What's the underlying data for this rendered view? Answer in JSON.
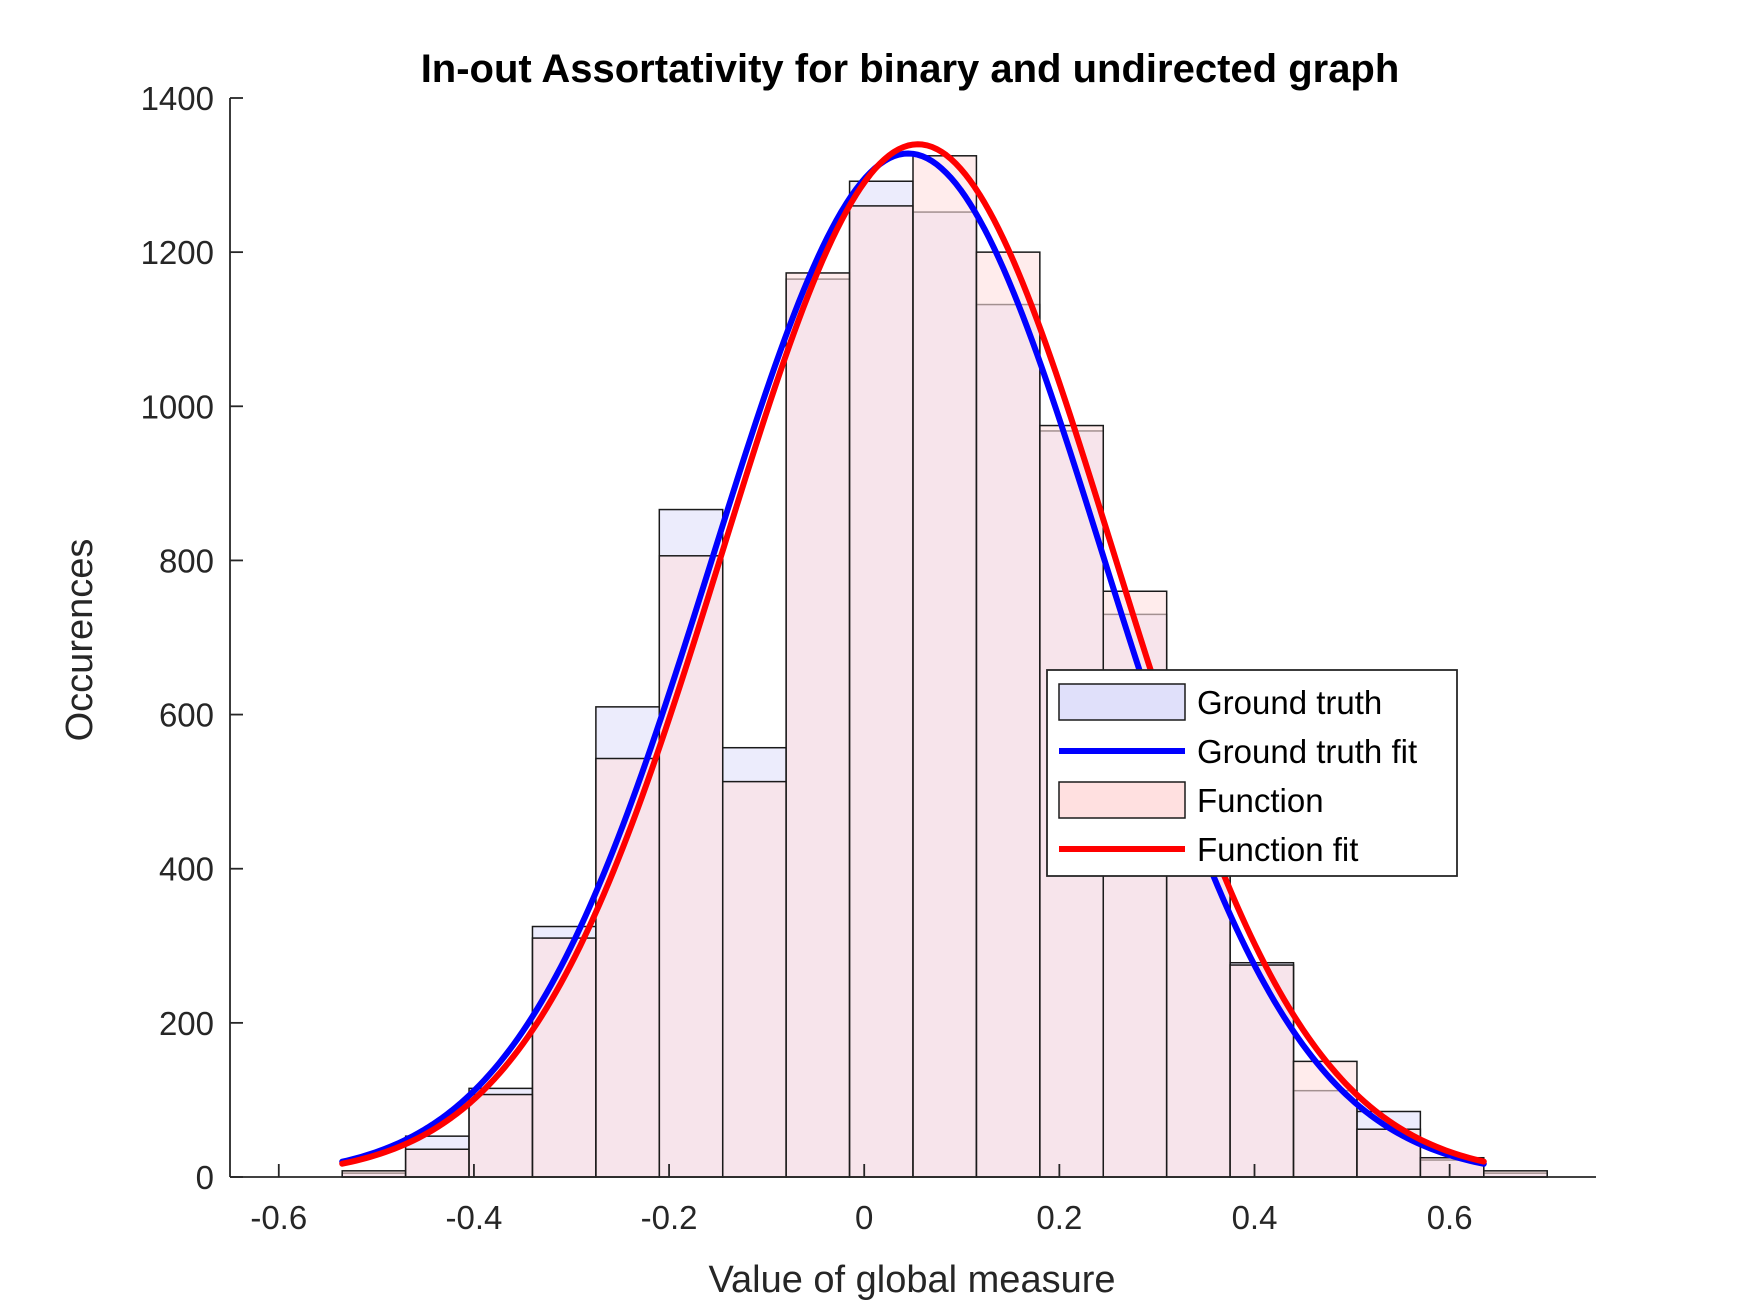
{
  "chart_data": {
    "type": "bar",
    "title": "In-out Assortativity for binary and undirected graph",
    "xlabel": "Value of global measure",
    "ylabel": "Occurences",
    "xlim": [
      -0.65,
      0.75
    ],
    "ylim": [
      0,
      1400
    ],
    "xticks": [
      -0.6,
      -0.4,
      -0.2,
      0,
      0.2,
      0.4,
      0.6
    ],
    "xtick_labels": [
      "-0.6",
      "-0.4",
      "-0.2",
      "0",
      "0.2",
      "0.4",
      "0.6"
    ],
    "yticks": [
      0,
      200,
      400,
      600,
      800,
      1000,
      1200,
      1400
    ],
    "ytick_labels": [
      "0",
      "200",
      "400",
      "600",
      "800",
      "1000",
      "1200",
      "1400"
    ],
    "grid": false,
    "legend_position": "right",
    "bin_edges": [
      -0.535,
      -0.47,
      -0.405,
      -0.34,
      -0.275,
      -0.21,
      -0.145,
      -0.08,
      -0.015,
      0.05,
      0.115,
      0.18,
      0.245,
      0.31,
      0.375,
      0.44,
      0.505,
      0.57,
      0.635,
      0.7
    ],
    "series": [
      {
        "name": "Ground truth",
        "kind": "histogram",
        "color": "#e0e0fa",
        "values": [
          5,
          53,
          115,
          325,
          610,
          866,
          557,
          1165,
          1292,
          1252,
          1132,
          968,
          730,
          420,
          278,
          112,
          85,
          22,
          5
        ]
      },
      {
        "name": "Ground truth fit",
        "kind": "line",
        "color": "#0000ff",
        "x_range": [
          -0.535,
          0.635
        ],
        "mu": 0.045,
        "sigma": 0.2,
        "peak": 1328
      },
      {
        "name": "Function",
        "kind": "histogram",
        "color": "#ffe0e0",
        "values": [
          8,
          36,
          107,
          310,
          543,
          806,
          513,
          1173,
          1260,
          1325,
          1200,
          975,
          760,
          440,
          275,
          150,
          62,
          25,
          8
        ]
      },
      {
        "name": "Function fit",
        "kind": "line",
        "color": "#ff0000",
        "x_range": [
          -0.535,
          0.635
        ],
        "mu": 0.055,
        "sigma": 0.2,
        "peak": 1340
      }
    ]
  }
}
